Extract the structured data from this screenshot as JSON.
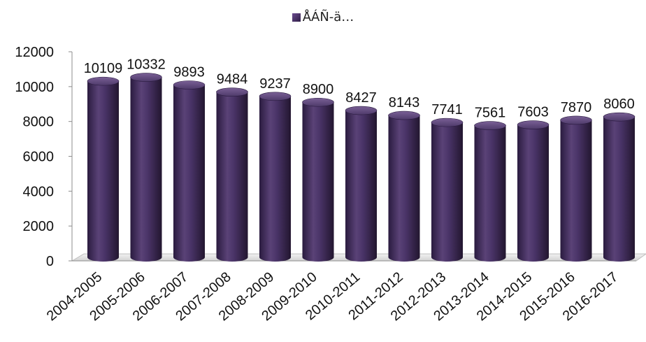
{
  "chart_data": {
    "type": "bar",
    "style": "3d-cylinder",
    "categories": [
      "2004-2005",
      "2005-2006",
      "2006-2007",
      "2007-2008",
      "2008-2009",
      "2009-2010",
      "2010-2011",
      "2011-2012",
      "2012-2013",
      "2013-2014",
      "2014-2015",
      "2015-2016",
      "2016-2017"
    ],
    "series": [
      {
        "name": "ÅÁÑ-ä…",
        "values": [
          10109,
          10332,
          9893,
          9484,
          9237,
          8900,
          8427,
          8143,
          7741,
          7561,
          7603,
          7870,
          8060
        ]
      }
    ],
    "data_labels": [
      "10109",
      "10332",
      "9893",
      "9484",
      "9237",
      "8900",
      "8427",
      "8143",
      "7741",
      "7561",
      "7603",
      "7870",
      "8060"
    ],
    "yticks": [
      "0",
      "2000",
      "4000",
      "6000",
      "8000",
      "10000",
      "12000"
    ],
    "ylim": [
      0,
      12000
    ],
    "title": "",
    "xlabel": "",
    "ylabel": "",
    "grid": false,
    "legend_position": "top",
    "colors": {
      "bar": "#3d2a5a",
      "bar_highlight": "#6e5490",
      "floor": "#e6e6e6"
    }
  }
}
